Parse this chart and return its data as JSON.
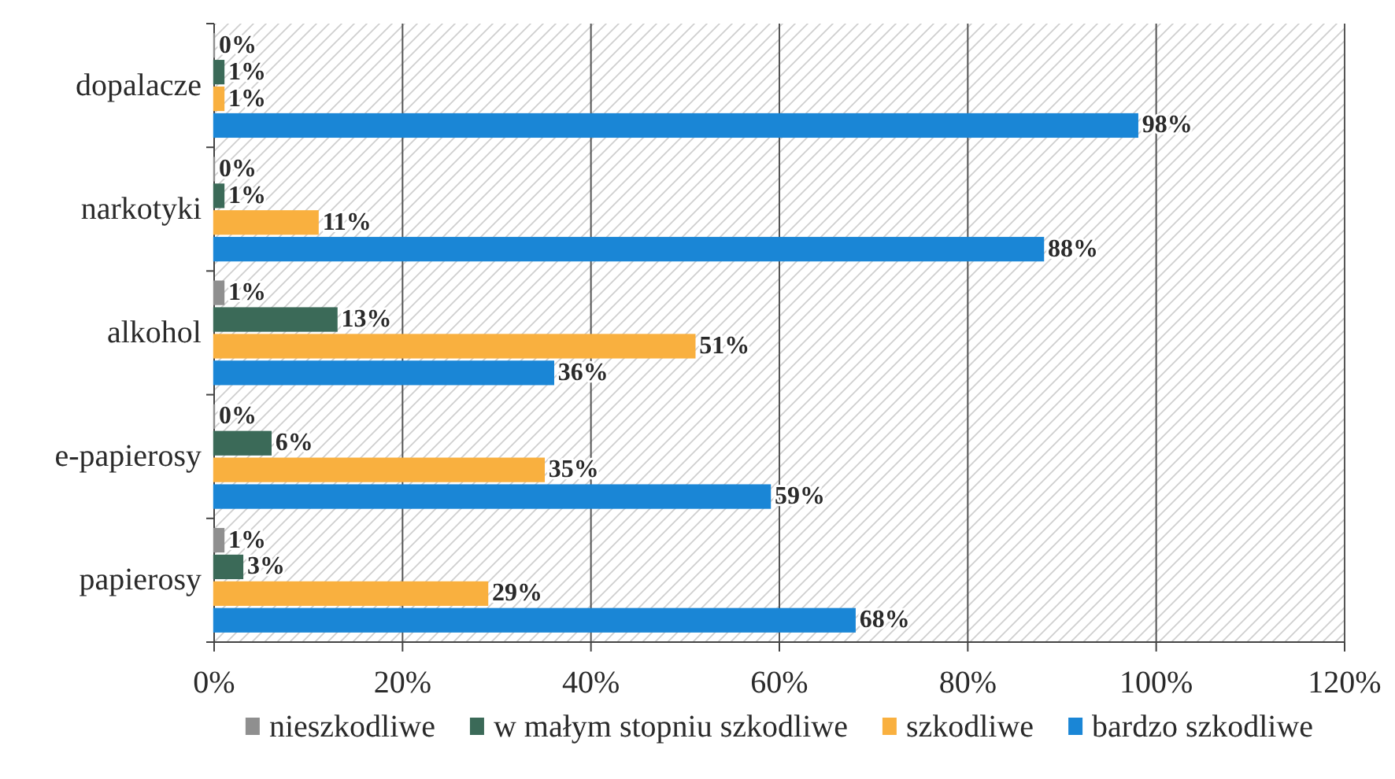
{
  "chart_data": {
    "type": "bar",
    "orientation": "horizontal",
    "categories": [
      "dopalacze",
      "narkotyki",
      "alkohol",
      "e-papierosy",
      "papierosy"
    ],
    "series": [
      {
        "name": "nieszkodliwe",
        "color": "#8f8f8f",
        "values": [
          0,
          0,
          1,
          0,
          1
        ],
        "value_labels": [
          "0%",
          "0%",
          "1%",
          "0%",
          "1%"
        ]
      },
      {
        "name": "w małym stopniu szkodliwe",
        "color": "#3b6a58",
        "values": [
          1,
          1,
          13,
          6,
          3
        ],
        "value_labels": [
          "1%",
          "1%",
          "13%",
          "6%",
          "3%"
        ]
      },
      {
        "name": "szkodliwe",
        "color": "#f9b03f",
        "values": [
          1,
          11,
          51,
          35,
          29
        ],
        "value_labels": [
          "1%",
          "11%",
          "51%",
          "35%",
          "29%"
        ]
      },
      {
        "name": "bardzo szkodliwe",
        "color": "#1a86d6",
        "values": [
          98,
          88,
          36,
          59,
          68
        ],
        "value_labels": [
          "98%",
          "88%",
          "36%",
          "59%",
          "68%"
        ]
      }
    ],
    "xlim": [
      0,
      120
    ],
    "xticks": [
      {
        "value": 0,
        "label": "0%"
      },
      {
        "value": 20,
        "label": "20%"
      },
      {
        "value": 40,
        "label": "40%"
      },
      {
        "value": 60,
        "label": "60%"
      },
      {
        "value": 80,
        "label": "80%"
      },
      {
        "value": 100,
        "label": "100%"
      },
      {
        "value": 120,
        "label": "120%"
      }
    ],
    "grid": "x",
    "legend": "bottom"
  }
}
